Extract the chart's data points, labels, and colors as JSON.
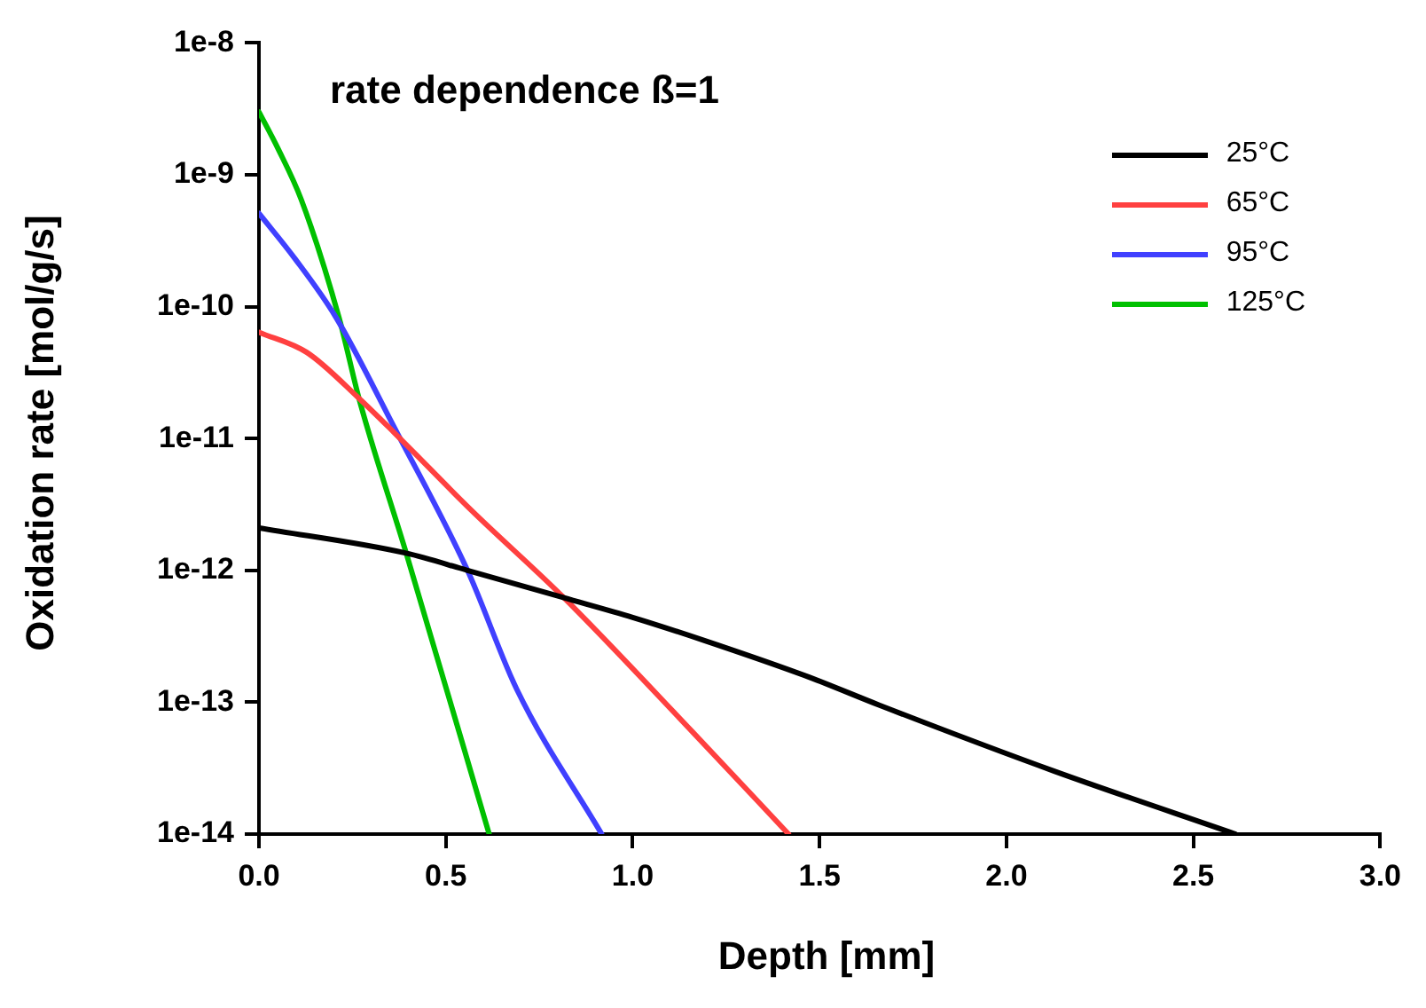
{
  "chart_data": {
    "type": "line",
    "title": "rate dependence ß=1",
    "xlabel": "Depth [mm]",
    "ylabel": "Oxidation rate [mol/g/s]",
    "log": "y",
    "grid": false,
    "legend": "top right",
    "marker": "none",
    "line_style": "solid",
    "xlim": [
      0,
      3
    ],
    "xticks": [
      {
        "value": 0,
        "label": "0.0"
      },
      {
        "value": 0.5,
        "label": "0.5"
      },
      {
        "value": 1,
        "label": "1.0"
      },
      {
        "value": 1.5,
        "label": "1.5"
      },
      {
        "value": 2,
        "label": "2.0"
      },
      {
        "value": 2.5,
        "label": "2.5"
      },
      {
        "value": 3,
        "label": "3.0"
      }
    ],
    "ylim": [
      1e-14,
      1e-08
    ],
    "yticks": [
      {
        "value": 1e-14,
        "label": "1e-14"
      },
      {
        "value": 1e-13,
        "label": "1e-13"
      },
      {
        "value": 1e-12,
        "label": "1e-12"
      },
      {
        "value": 1e-11,
        "label": "1e-11"
      },
      {
        "value": 1e-10,
        "label": "1e-10"
      },
      {
        "value": 1e-09,
        "label": "1e-9"
      },
      {
        "value": 1e-08,
        "label": "1e-8"
      }
    ],
    "series": [
      {
        "name": "25°C",
        "color": "#000000",
        "x": [
          0,
          0.394,
          0.558,
          0.816,
          1.0,
          1.19,
          1.472,
          1.66,
          2.128,
          2.613
        ],
        "values": [
          2.1e-12,
          1.35e-12,
          1e-12,
          6.2e-13,
          4.4e-13,
          2.95e-13,
          1.55e-13,
          9.5e-14,
          3e-14,
          1e-14
        ]
      },
      {
        "name": "65°C",
        "color": "#ff4040",
        "x": [
          0,
          0.128,
          0.269,
          0.363,
          0.566,
          0.816,
          1.159,
          1.417
        ],
        "values": [
          6.4e-11,
          4.5e-11,
          2e-11,
          1.1e-11,
          2.9e-12,
          6.2e-13,
          6e-14,
          1e-14
        ]
      },
      {
        "name": "95°C",
        "color": "#4040ff",
        "x": [
          0,
          0.097,
          0.206,
          0.363,
          0.558,
          0.69,
          0.917
        ],
        "values": [
          5.1e-10,
          2.3e-10,
          8.3e-11,
          1.2e-11,
          1e-12,
          1.25e-13,
          1e-14
        ]
      },
      {
        "name": "125°C",
        "color": "#00c000",
        "x": [
          0,
          0.05,
          0.113,
          0.214,
          0.269,
          0.394,
          0.616
        ],
        "values": [
          3e-09,
          1.6e-09,
          6.5e-10,
          8.3e-11,
          1.95e-11,
          1.35e-12,
          1e-14
        ]
      }
    ]
  }
}
